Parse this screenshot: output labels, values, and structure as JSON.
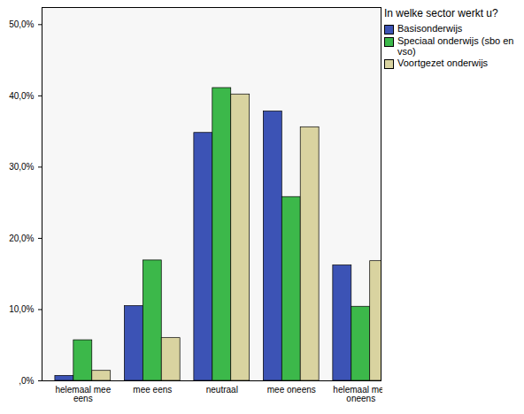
{
  "chart_data": {
    "type": "bar",
    "legend_title": "In welke sector werkt u?",
    "categories": [
      "helemaal mee eens",
      "mee eens",
      "neutraal",
      "mee oneens",
      "helemaal mee oneens"
    ],
    "series": [
      {
        "name": "Basisonderwijs",
        "color": "#3c53b5",
        "values": [
          0.7,
          10.5,
          34.8,
          37.8,
          16.2
        ]
      },
      {
        "name": "Speciaal onderwijs (sbo en vso)",
        "color": "#3cb84a",
        "values": [
          5.7,
          16.9,
          41.1,
          25.8,
          10.4
        ]
      },
      {
        "name": "Voortgezet onderwijs",
        "color": "#d9d3a0",
        "values": [
          1.4,
          6.0,
          40.2,
          35.6,
          16.8
        ]
      }
    ],
    "ylim": [
      0,
      52.4
    ],
    "yticks": [
      {
        "value": 0,
        "label": ",0%"
      },
      {
        "value": 10,
        "label": "10,0%"
      },
      {
        "value": 20,
        "label": "20,0%"
      },
      {
        "value": 30,
        "label": "30,0%"
      },
      {
        "value": 40,
        "label": "40,0%"
      },
      {
        "value": 50,
        "label": "50,0%"
      }
    ],
    "grid": false,
    "legend": "right"
  }
}
